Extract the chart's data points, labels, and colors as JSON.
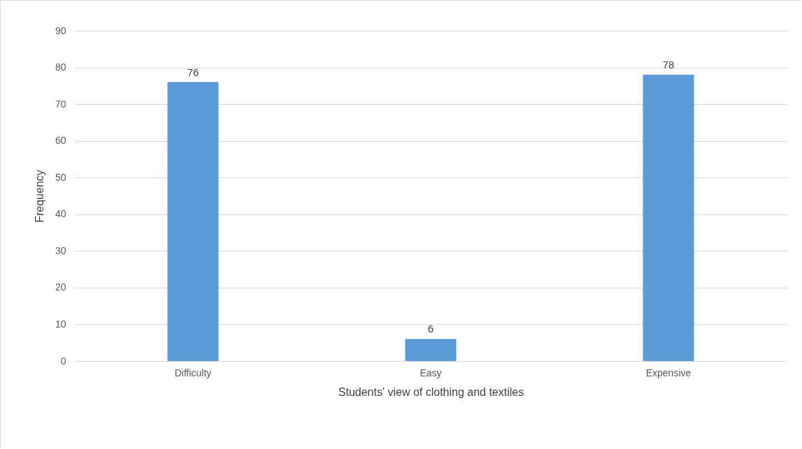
{
  "chart_data": {
    "type": "bar",
    "xlabel": "Students' view of clothing and textiles",
    "ylabel": "Frequency",
    "categories": [
      "Difficulty",
      "Easy",
      "Expensive"
    ],
    "values": [
      76,
      6,
      78
    ],
    "color": "#5b9bd5",
    "ylim": [
      0,
      90
    ],
    "yticks": [
      0,
      10,
      20,
      30,
      40,
      50,
      60,
      70,
      80,
      90
    ],
    "grid": "y",
    "data_labels": true
  }
}
